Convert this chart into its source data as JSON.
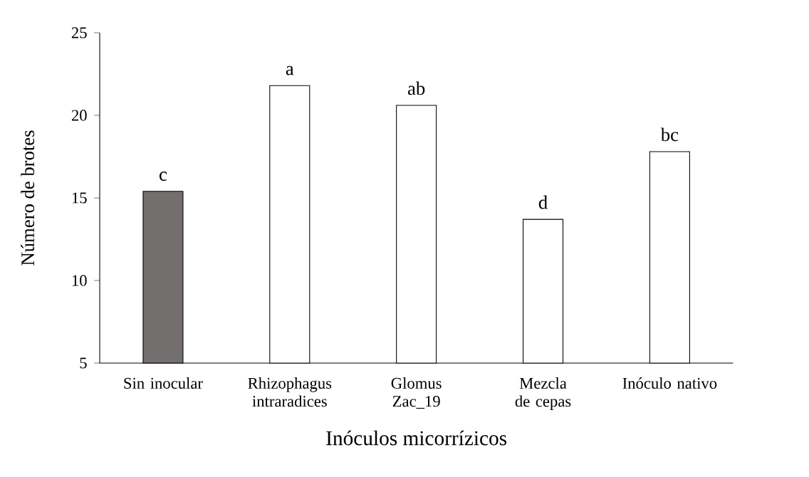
{
  "chart_data": {
    "type": "bar",
    "xlabel": "Inóculos micorrízicos",
    "ylabel": "Número de brotes",
    "categories": [
      "Sin inocular",
      "Rhizophagus intraradices",
      "Glomus Zac_19",
      "Mezcla de cepas",
      "Inóculo nativo"
    ],
    "values": [
      15.4,
      21.8,
      20.6,
      13.7,
      17.8
    ],
    "colors": [
      "#736f6e",
      "#ffffff",
      "#ffffff",
      "#ffffff",
      "#ffffff"
    ],
    "ylim": [
      5,
      25
    ],
    "yticks": [
      5,
      10,
      15,
      20,
      25
    ],
    "annotations": [
      {
        "text": "c",
        "x": "Sin inocular",
        "y": 15.4
      },
      {
        "text": "a",
        "x": "Rhizophagus intraradices",
        "y": 21.8
      },
      {
        "text": "ab",
        "x": "Glomus Zac_19",
        "y": 20.6
      },
      {
        "text": "d",
        "x": "Mezcla de cepas",
        "y": 13.7
      },
      {
        "text": "bc",
        "x": "Inóculo nativo",
        "y": 17.8
      }
    ]
  }
}
